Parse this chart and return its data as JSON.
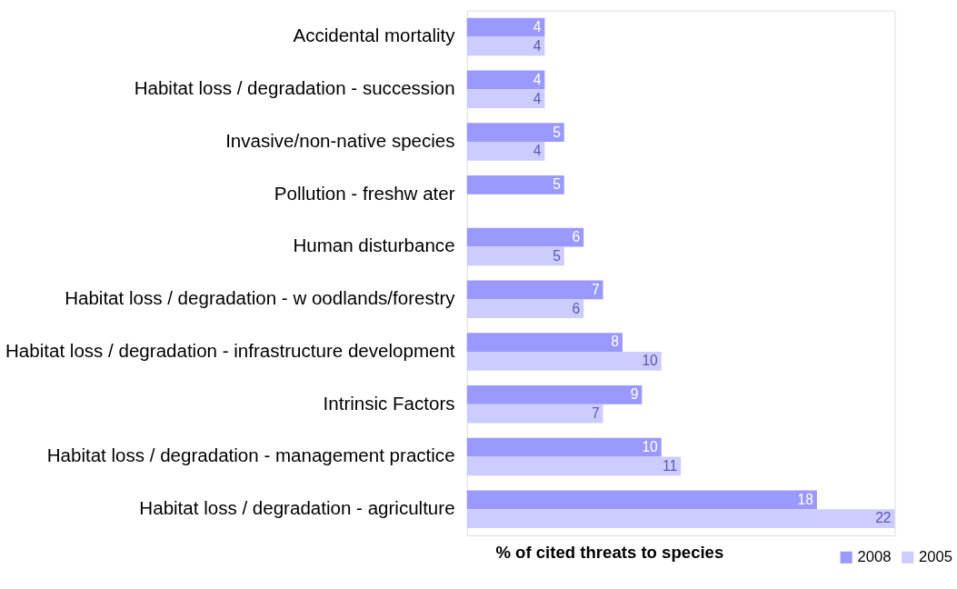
{
  "chart_data": {
    "type": "bar",
    "orientation": "horizontal",
    "xlabel": "% of cited threats to species",
    "categories": [
      "Accidental mortality",
      "Habitat loss / degradation - succession",
      "Invasive/non-native species",
      "Pollution - freshw ater",
      "Human disturbance",
      "Habitat loss / degradation - w oodlands/forestry",
      "Habitat loss / degradation - infrastructure development",
      "Intrinsic Factors",
      "Habitat loss / degradation - management practice",
      "Habitat loss / degradation - agriculture"
    ],
    "series": [
      {
        "name": "2008",
        "color": "#9999ff",
        "values": [
          4,
          4,
          5,
          5,
          6,
          7,
          8,
          9,
          10,
          18
        ]
      },
      {
        "name": "2005",
        "color": "#ccccff",
        "values": [
          4,
          4,
          4,
          null,
          5,
          6,
          10,
          7,
          11,
          22
        ]
      }
    ],
    "data_labels": true,
    "legend": "bottom right",
    "grid": false
  }
}
